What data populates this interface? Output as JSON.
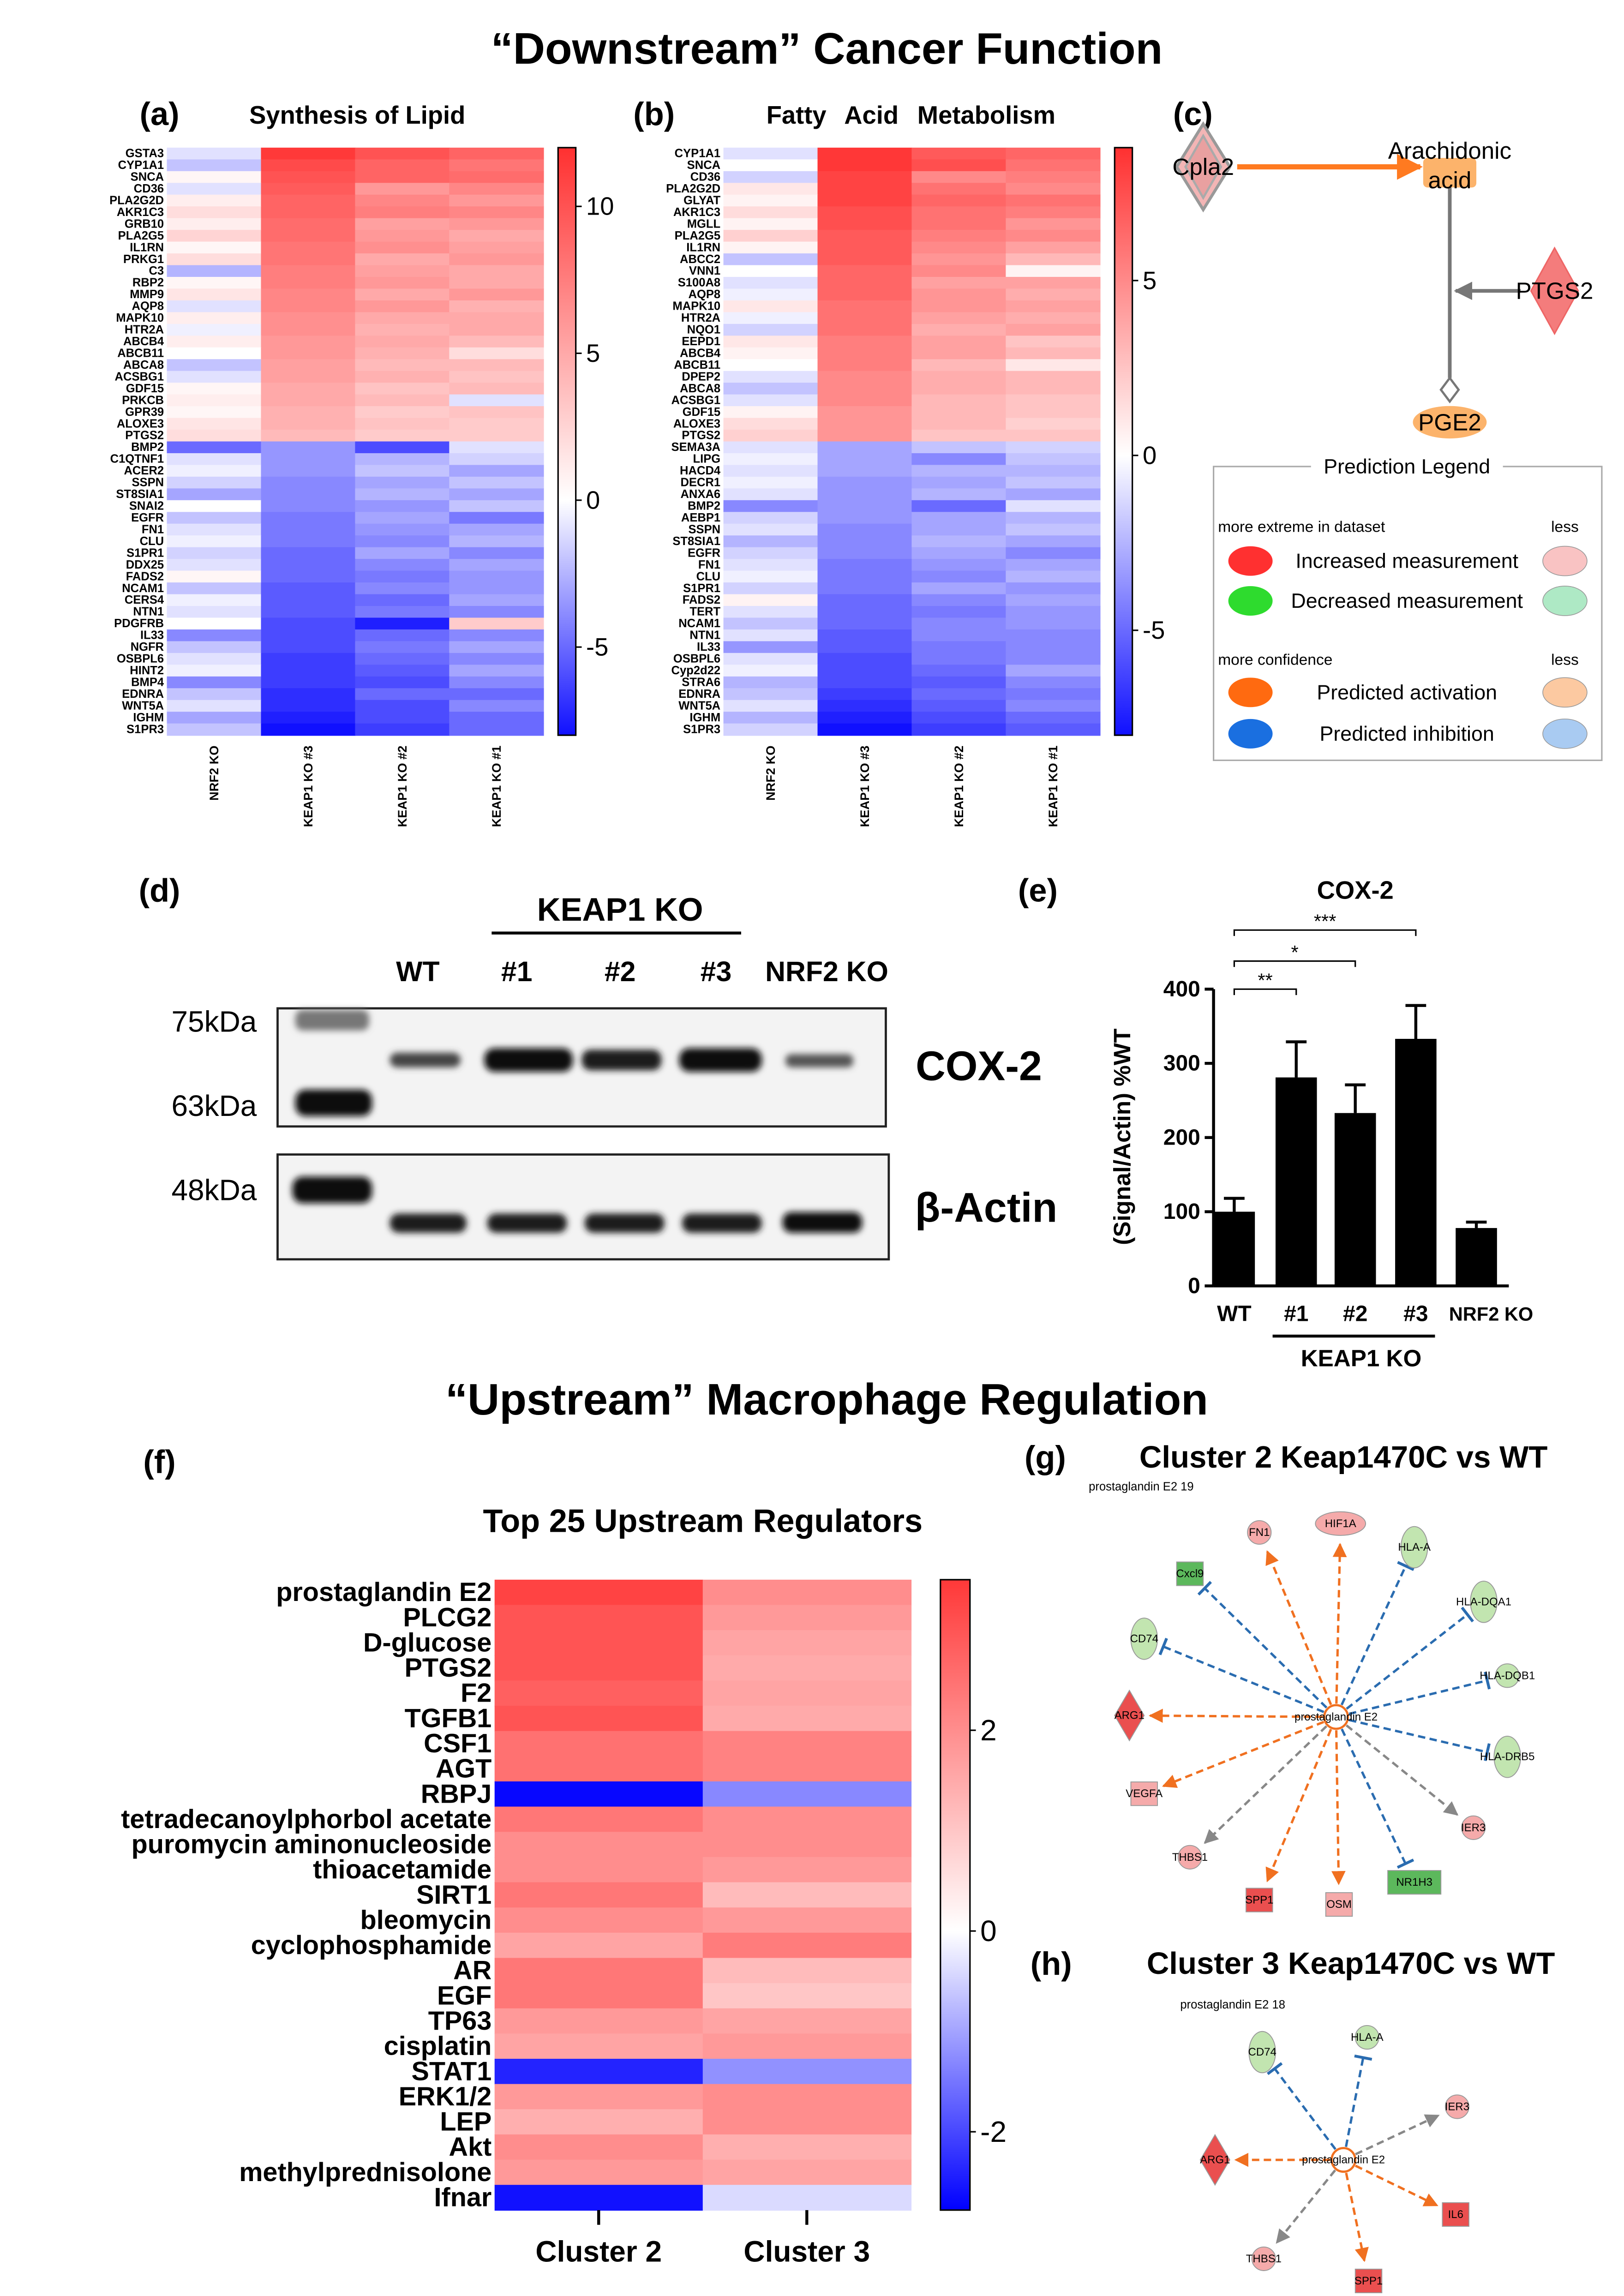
{
  "headers": [
    "“Downstream” Cancer Function",
    "“Upstream” Macrophage Regulation"
  ],
  "chart_data": [
    {
      "type": "heatmap",
      "panel": "(a)",
      "title": "Synthesis of Lipid",
      "rows": [
        "GSTA3",
        "CYP1A1",
        "SNCA",
        "CD36",
        "PLA2G2D",
        "AKR1C3",
        "GRB10",
        "PLA2G5",
        "IL1RN",
        "PRKG1",
        "C3",
        "RBP2",
        "MMP9",
        "AQP8",
        "MAPK10",
        "HTR2A",
        "ABCB4",
        "ABCB11",
        "ABCA8",
        "ACSBG1",
        "GDF15",
        "PRKCB",
        "GPR39",
        "ALOXE3",
        "PTGS2",
        "BMP2",
        "C1QTNF1",
        "ACER2",
        "SSPN",
        "ST8SIA1",
        "SNAI2",
        "EGFR",
        "FN1",
        "CLU",
        "S1PR1",
        "DDX25",
        "FADS2",
        "NCAM1",
        "CERS4",
        "NTN1",
        "PDGFRB",
        "IL33",
        "NGFR",
        "OSBPL6",
        "HINT2",
        "BMP4",
        "EDNRA",
        "WNT5A",
        "IGHM",
        "S1PR3"
      ],
      "columns": [
        "NRF2 KO",
        "KEAP1 KO #3",
        "KEAP1 KO #2",
        "KEAP1 KO #1"
      ],
      "values": [
        [
          -1,
          11.5,
          10,
          9
        ],
        [
          -2,
          10.5,
          9,
          8
        ],
        [
          0.5,
          10,
          9,
          8.5
        ],
        [
          -1,
          9.5,
          6,
          7
        ],
        [
          1,
          9,
          7,
          6
        ],
        [
          2,
          9,
          7.5,
          7
        ],
        [
          1,
          8.5,
          5.5,
          6
        ],
        [
          2.5,
          8.5,
          6,
          5
        ],
        [
          0.5,
          8,
          6.5,
          5.5
        ],
        [
          2,
          8,
          5,
          6
        ],
        [
          -2.5,
          7.5,
          5.5,
          5
        ],
        [
          0.5,
          7.5,
          6,
          5
        ],
        [
          1.5,
          7,
          5,
          6
        ],
        [
          -1,
          7,
          6,
          4.5
        ],
        [
          1,
          6.5,
          5,
          5
        ],
        [
          -0.5,
          6.5,
          4.5,
          5
        ],
        [
          1,
          6,
          5,
          4
        ],
        [
          0,
          6,
          4.5,
          2
        ],
        [
          -2,
          5.5,
          4,
          4
        ],
        [
          -1,
          5.5,
          4.5,
          3.5
        ],
        [
          0.5,
          5,
          3.5,
          4
        ],
        [
          1,
          5,
          4,
          -1
        ],
        [
          0.5,
          4.5,
          3,
          3.5
        ],
        [
          1.5,
          4.5,
          3.5,
          3
        ],
        [
          2,
          4,
          3,
          3
        ],
        [
          -5,
          -3.5,
          -6,
          -1
        ],
        [
          -1,
          -3.5,
          -2.5,
          -1.5
        ],
        [
          -0.5,
          -3.5,
          -2,
          -3
        ],
        [
          -1.5,
          -4,
          -3,
          -2
        ],
        [
          -3,
          -4,
          -2.5,
          -3
        ],
        [
          0,
          -4,
          -3.5,
          -2
        ],
        [
          -2,
          -4.5,
          -3,
          -4.5
        ],
        [
          -1,
          -4.5,
          -3.5,
          -3
        ],
        [
          -0.5,
          -4.5,
          -4,
          -2.5
        ],
        [
          -1.5,
          -5,
          -3,
          -4
        ],
        [
          -1,
          -5,
          -4,
          -3
        ],
        [
          0.5,
          -5,
          -4.5,
          -3.5
        ],
        [
          -2,
          -5.5,
          -4,
          -3.5
        ],
        [
          -0.5,
          -5.5,
          -5,
          -3
        ],
        [
          -1,
          -5.5,
          -4.5,
          -4
        ],
        [
          0,
          -6,
          -7.5,
          3
        ],
        [
          -4,
          -6,
          -5,
          -4
        ],
        [
          -2,
          -6,
          -4.5,
          -3
        ],
        [
          -1,
          -6.5,
          -5,
          -4
        ],
        [
          -0.5,
          -6.5,
          -5.5,
          -3
        ],
        [
          -4,
          -6.5,
          -6,
          -4
        ],
        [
          -2,
          -7,
          -5,
          -5
        ],
        [
          -1,
          -7,
          -6,
          -4
        ],
        [
          -3,
          -7.5,
          -6,
          -5
        ],
        [
          -2,
          -8,
          -6.5,
          -5
        ]
      ],
      "zlim": [
        -8,
        12
      ],
      "zticks": [
        -5,
        0,
        5,
        10
      ],
      "colors": [
        "#1010ff",
        "#ffffff",
        "#ff3030"
      ]
    },
    {
      "type": "heatmap",
      "panel": "(b)",
      "title": "Fatty Acid Metabolism",
      "rows": [
        "CYP1A1",
        "SNCA",
        "CD36",
        "PLA2G2D",
        "GLYAT",
        "AKR1C3",
        "MGLL",
        "PLA2G5",
        "IL1RN",
        "ABCC2",
        "VNN1",
        "S100A8",
        "AQP8",
        "MAPK10",
        "HTR2A",
        "NQO1",
        "EEPD1",
        "ABCB4",
        "ABCB11",
        "DPEP2",
        "ABCA8",
        "ACSBG1",
        "GDF15",
        "ALOXE3",
        "PTGS2",
        "SEMA3A",
        "LIPG",
        "HACD4",
        "DECR1",
        "ANXA6",
        "BMP2",
        "AEBP1",
        "SSPN",
        "ST8SIA1",
        "EGFR",
        "FN1",
        "CLU",
        "S1PR1",
        "FADS2",
        "TERT",
        "NCAM1",
        "NTN1",
        "IL33",
        "OSBPL6",
        "Cyp2d22",
        "STRA6",
        "EDNRA",
        "WNT5A",
        "IGHM",
        "S1PR3"
      ],
      "columns": [
        "NRF2 KO",
        "KEAP1 KO #3",
        "KEAP1 KO #2",
        "KEAP1 KO #1"
      ],
      "values": [
        [
          -1,
          8.5,
          7,
          6.5
        ],
        [
          0,
          8.5,
          7.5,
          6
        ],
        [
          -1.5,
          8,
          5,
          5.5
        ],
        [
          1,
          8,
          6,
          5
        ],
        [
          0.5,
          8,
          6.5,
          6
        ],
        [
          1.5,
          7.5,
          6,
          5.5
        ],
        [
          0.5,
          7.5,
          6,
          4.5
        ],
        [
          2,
          7,
          5.5,
          5
        ],
        [
          0.5,
          7,
          5,
          4
        ],
        [
          -2,
          7,
          4.5,
          3
        ],
        [
          0,
          6.5,
          5,
          0.5
        ],
        [
          -1,
          6.5,
          4,
          4
        ],
        [
          -0.5,
          6.5,
          4.5,
          3.5
        ],
        [
          1,
          6,
          4.5,
          4
        ],
        [
          -0.5,
          6,
          4,
          3.5
        ],
        [
          -1.5,
          6,
          3.5,
          4
        ],
        [
          1,
          5.5,
          4,
          2.5
        ],
        [
          0.5,
          5.5,
          4,
          3
        ],
        [
          0,
          5.5,
          3,
          1
        ],
        [
          -1,
          5,
          3.5,
          3
        ],
        [
          -2,
          5,
          3.5,
          3
        ],
        [
          -1,
          5,
          3,
          2.5
        ],
        [
          0.5,
          4.5,
          3,
          2.5
        ],
        [
          1.5,
          4.5,
          3,
          2
        ],
        [
          2,
          4.5,
          2.5,
          2.5
        ],
        [
          -1,
          -3,
          -2,
          -1.5
        ],
        [
          -0.5,
          -3,
          -4,
          -2
        ],
        [
          -1,
          -3,
          -2.5,
          -2.5
        ],
        [
          -0.5,
          -3.5,
          -3,
          -2
        ],
        [
          -1,
          -3.5,
          -2.5,
          -3
        ],
        [
          -4,
          -3.5,
          -5,
          -1
        ],
        [
          -1.5,
          -3.5,
          -3,
          -2.5
        ],
        [
          -1,
          -4,
          -3,
          -2
        ],
        [
          -2.5,
          -4,
          -2.5,
          -3
        ],
        [
          -1.5,
          -4,
          -3,
          -4
        ],
        [
          -1,
          -4.5,
          -3.5,
          -3
        ],
        [
          -0.5,
          -4.5,
          -4,
          -2.5
        ],
        [
          -1.5,
          -4.5,
          -3,
          -3.5
        ],
        [
          0.5,
          -5,
          -4,
          -3
        ],
        [
          -1,
          -5,
          -4.5,
          -3.5
        ],
        [
          -2,
          -5,
          -4,
          -3.5
        ],
        [
          -1,
          -5.5,
          -4,
          -4
        ],
        [
          -3.5,
          -5.5,
          -4.5,
          -4
        ],
        [
          -1,
          -6,
          -4.5,
          -4
        ],
        [
          -0.5,
          -6,
          -5,
          -3
        ],
        [
          -2.5,
          -6,
          -5.5,
          -4
        ],
        [
          -2,
          -6.5,
          -5,
          -4.5
        ],
        [
          -1,
          -7,
          -5.5,
          -4
        ],
        [
          -2.5,
          -7.5,
          -6,
          -5
        ],
        [
          -1.5,
          -8,
          -6.5,
          -5.5
        ]
      ],
      "zlim": [
        -8,
        8.8
      ],
      "zticks": [
        -5,
        0,
        5
      ],
      "colors": [
        "#1010ff",
        "#ffffff",
        "#ff3030"
      ]
    },
    {
      "type": "bar",
      "panel": "(e)",
      "title": "COX-2",
      "categories": [
        "WT",
        "#1",
        "#2",
        "#3",
        "NRF2 KO"
      ],
      "values": [
        100,
        281,
        233,
        333,
        78
      ],
      "errors": [
        18,
        48,
        38,
        45,
        8
      ],
      "color": "#000000",
      "ylim": [
        0,
        400
      ],
      "yticks": [
        0,
        100,
        200,
        300,
        400
      ],
      "y_label": "(Signal/Actin) %WT",
      "group_label": "KEAP1 KO",
      "significance": [
        "**",
        "*",
        "***"
      ]
    },
    {
      "type": "heatmap",
      "panel": "(f)",
      "title": "Top 25 Upstream Regulators",
      "rows": [
        "prostaglandin E2",
        "PLCG2",
        "D-glucose",
        "PTGS2",
        "F2",
        "TGFB1",
        "CSF1",
        "AGT",
        "RBPJ",
        "tetradecanoylphorbol acetate",
        "puromycin aminonucleoside",
        "thioacetamide",
        "SIRT1",
        "bleomycin",
        "cyclophosphamide",
        "AR",
        "EGF",
        "TP63",
        "cisplatin",
        "STAT1",
        "ERK1/2",
        "LEP",
        "Akt",
        "methylprednisolone",
        "Ifnar"
      ],
      "columns": [
        "Cluster 2",
        "Cluster 3"
      ],
      "values": [
        [
          3.3,
          2.0
        ],
        [
          3.0,
          1.8
        ],
        [
          3.0,
          1.6
        ],
        [
          3.0,
          1.5
        ],
        [
          2.8,
          1.6
        ],
        [
          3.0,
          1.5
        ],
        [
          2.5,
          2.2
        ],
        [
          2.5,
          2.2
        ],
        [
          -2.7,
          -1.3
        ],
        [
          2.4,
          2.0
        ],
        [
          2.0,
          2.0
        ],
        [
          2.0,
          1.8
        ],
        [
          2.4,
          1.2
        ],
        [
          2.0,
          1.8
        ],
        [
          1.6,
          2.3
        ],
        [
          2.4,
          1.2
        ],
        [
          2.4,
          1.0
        ],
        [
          1.8,
          1.6
        ],
        [
          1.6,
          1.8
        ],
        [
          -2.4,
          -1.2
        ],
        [
          1.8,
          2.0
        ],
        [
          1.4,
          2.0
        ],
        [
          2.0,
          1.4
        ],
        [
          1.8,
          1.6
        ],
        [
          -2.6,
          -0.4
        ]
      ],
      "zlim": [
        -2.78,
        3.5
      ],
      "zticks": [
        -2,
        0,
        2
      ],
      "colors": [
        "#0000ff",
        "#ffffff",
        "#ff3838"
      ]
    }
  ],
  "pathway": {
    "panel": "(c)",
    "nodes": [
      {
        "lines": [
          "Cpla2"
        ]
      },
      {
        "lines": [
          "Arachidonic",
          "acid"
        ]
      },
      {
        "lines": [
          "PTGS2"
        ]
      },
      {
        "lines": [
          "PGE2"
        ]
      }
    ],
    "legend": {
      "title": "Prediction Legend",
      "groups": [
        {
          "heading": "more extreme in dataset",
          "less": "less",
          "items": [
            "Increased measurement",
            "Decreased measurement"
          ]
        },
        {
          "heading": "more confidence",
          "less": "less",
          "items": [
            "Predicted activation",
            "Predicted inhibition"
          ]
        }
      ]
    }
  },
  "blot": {
    "panel": "(d)",
    "group_label": "KEAP1 KO",
    "lanes": [
      "WT",
      "#1",
      "#2",
      "#3",
      "NRF2 KO"
    ],
    "markers": [
      "75kDa",
      "63kDa",
      "48kDa"
    ],
    "targets": [
      "COX-2",
      "β-Actin"
    ]
  },
  "networks": [
    {
      "panel": "(g)",
      "title": "Cluster 2 Keap1470C vs WT",
      "subtitle": "prostaglandin E2 19",
      "center": "prostaglandin E2",
      "nodes": [
        "FN1",
        "HIF1A",
        "HLA-A",
        "Cxcl9",
        "HLA-DQA1",
        "CD74",
        "HLA-DQB1",
        "ARG1",
        "HLA-DRB5",
        "VEGFA",
        "IER3",
        "THBS1",
        "NR1H3",
        "SPP1",
        "OSM"
      ]
    },
    {
      "panel": "(h)",
      "title": "Cluster 3 Keap1470C vs WT",
      "subtitle": "prostaglandin E2 18",
      "center": "prostaglandin E2",
      "nodes": [
        "CD74",
        "HLA-A",
        "IER3",
        "ARG1",
        "IL6",
        "THBS1",
        "SPP1"
      ]
    }
  ]
}
